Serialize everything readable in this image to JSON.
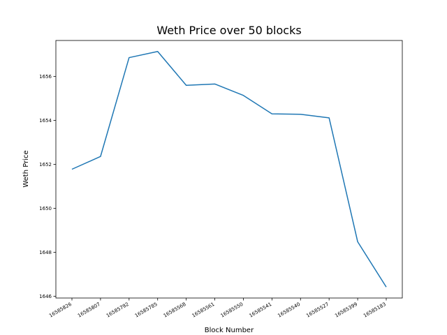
{
  "chart_data": {
    "type": "line",
    "title": "Weth Price over 50 blocks",
    "xlabel": "Block Number",
    "ylabel": "Weth Price",
    "categories": [
      "16585826",
      "16585807",
      "16585792",
      "16585785",
      "16585568",
      "16585561",
      "16585550",
      "16585541",
      "16585540",
      "16585527",
      "16585399",
      "16585183"
    ],
    "series": [
      {
        "values": [
          1651.78,
          1652.36,
          1656.86,
          1657.14,
          1655.6,
          1655.66,
          1655.14,
          1654.3,
          1654.28,
          1654.12,
          1648.48,
          1646.42
        ],
        "color": "#1f77b4"
      }
    ],
    "yticks": [
      1646,
      1648,
      1650,
      1652,
      1654,
      1656
    ],
    "ylim": [
      1645.92,
      1657.64
    ],
    "grid": false,
    "legend": "none"
  }
}
